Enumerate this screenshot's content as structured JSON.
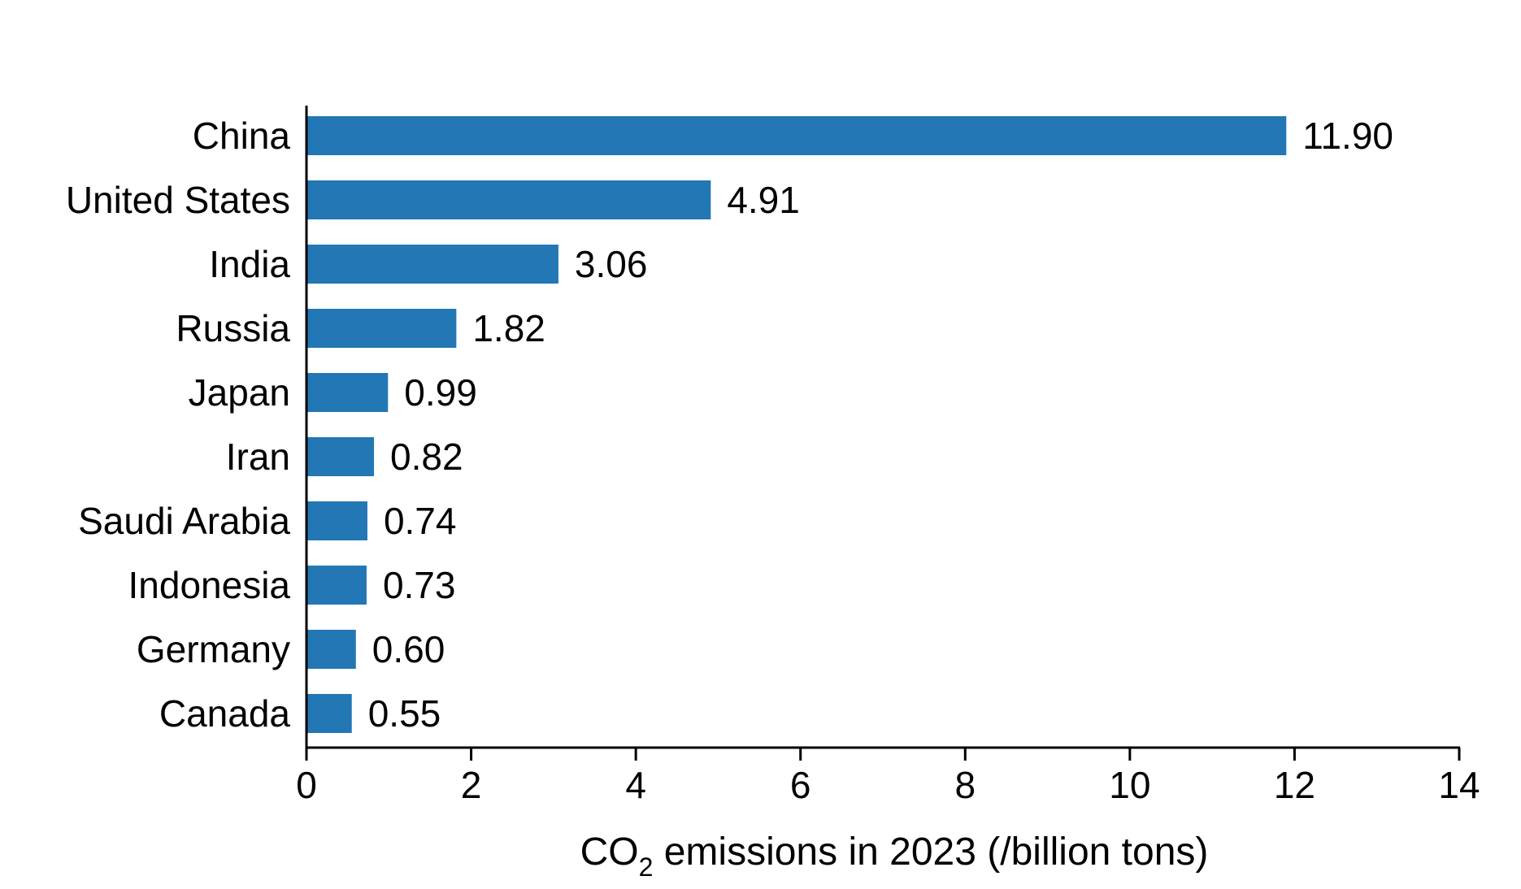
{
  "chart_data": {
    "type": "bar",
    "orientation": "horizontal",
    "categories": [
      "China",
      "United States",
      "India",
      "Russia",
      "Japan",
      "Iran",
      "Saudi Arabia",
      "Indonesia",
      "Germany",
      "Canada"
    ],
    "values": [
      11.9,
      4.91,
      3.06,
      1.82,
      0.99,
      0.82,
      0.74,
      0.73,
      0.6,
      0.55
    ],
    "value_labels": [
      "11.90",
      "4.91",
      "3.06",
      "1.82",
      "0.99",
      "0.82",
      "0.74",
      "0.73",
      "0.60",
      "0.55"
    ],
    "xticks": [
      "0",
      "2",
      "4",
      "6",
      "8",
      "10",
      "12",
      "14"
    ],
    "xlim": [
      0,
      14
    ],
    "xlabel": {
      "prefix": "CO",
      "subscript": "2",
      "suffix": " emissions in 2023 (/billion tons)"
    },
    "title": "",
    "grid": false,
    "legend": "none",
    "bar_color": "#2277B4"
  }
}
